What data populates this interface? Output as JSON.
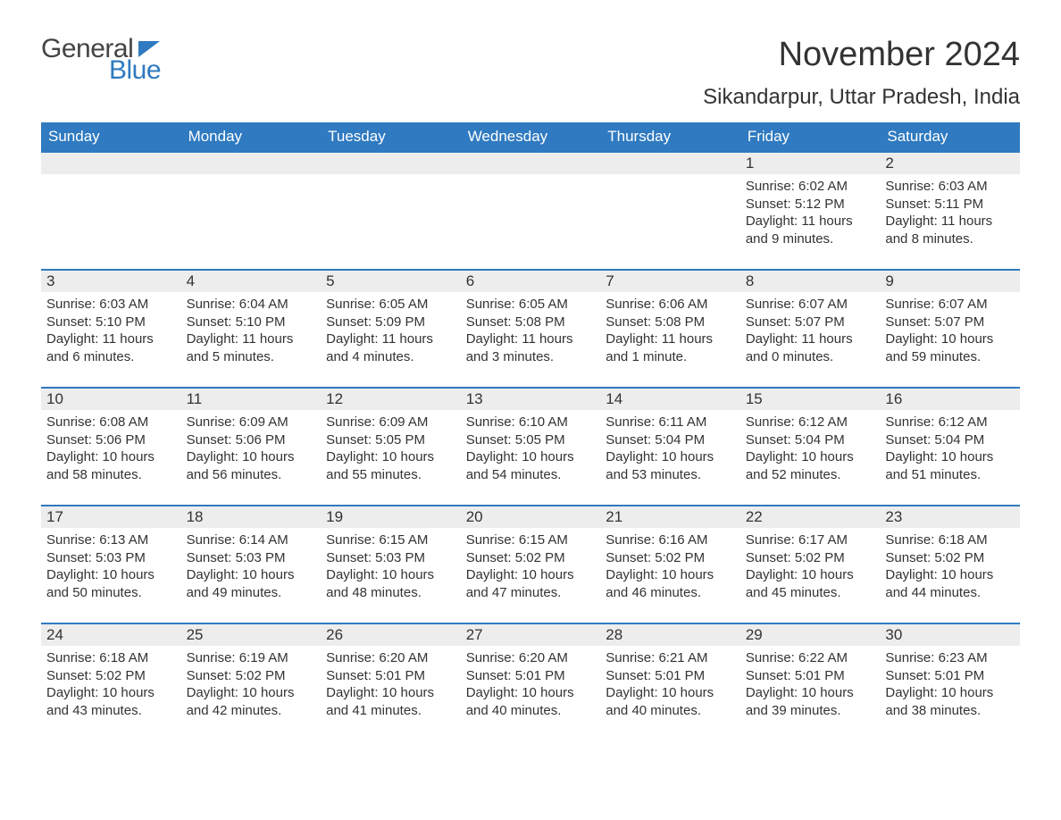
{
  "brand": {
    "word1": "General",
    "word2": "Blue"
  },
  "title": "November 2024",
  "location": "Sikandarpur, Uttar Pradesh, India",
  "colors": {
    "accent": "#2f7ac0",
    "header_text": "#ffffff",
    "daybar_bg": "#ededed",
    "body_text": "#333333",
    "page_bg": "#ffffff"
  },
  "calendar": {
    "type": "table",
    "columns": [
      "Sunday",
      "Monday",
      "Tuesday",
      "Wednesday",
      "Thursday",
      "Friday",
      "Saturday"
    ],
    "weeks": [
      [
        null,
        null,
        null,
        null,
        null,
        {
          "day": "1",
          "sunrise": "Sunrise: 6:02 AM",
          "sunset": "Sunset: 5:12 PM",
          "daylight": "Daylight: 11 hours and 9 minutes."
        },
        {
          "day": "2",
          "sunrise": "Sunrise: 6:03 AM",
          "sunset": "Sunset: 5:11 PM",
          "daylight": "Daylight: 11 hours and 8 minutes."
        }
      ],
      [
        {
          "day": "3",
          "sunrise": "Sunrise: 6:03 AM",
          "sunset": "Sunset: 5:10 PM",
          "daylight": "Daylight: 11 hours and 6 minutes."
        },
        {
          "day": "4",
          "sunrise": "Sunrise: 6:04 AM",
          "sunset": "Sunset: 5:10 PM",
          "daylight": "Daylight: 11 hours and 5 minutes."
        },
        {
          "day": "5",
          "sunrise": "Sunrise: 6:05 AM",
          "sunset": "Sunset: 5:09 PM",
          "daylight": "Daylight: 11 hours and 4 minutes."
        },
        {
          "day": "6",
          "sunrise": "Sunrise: 6:05 AM",
          "sunset": "Sunset: 5:08 PM",
          "daylight": "Daylight: 11 hours and 3 minutes."
        },
        {
          "day": "7",
          "sunrise": "Sunrise: 6:06 AM",
          "sunset": "Sunset: 5:08 PM",
          "daylight": "Daylight: 11 hours and 1 minute."
        },
        {
          "day": "8",
          "sunrise": "Sunrise: 6:07 AM",
          "sunset": "Sunset: 5:07 PM",
          "daylight": "Daylight: 11 hours and 0 minutes."
        },
        {
          "day": "9",
          "sunrise": "Sunrise: 6:07 AM",
          "sunset": "Sunset: 5:07 PM",
          "daylight": "Daylight: 10 hours and 59 minutes."
        }
      ],
      [
        {
          "day": "10",
          "sunrise": "Sunrise: 6:08 AM",
          "sunset": "Sunset: 5:06 PM",
          "daylight": "Daylight: 10 hours and 58 minutes."
        },
        {
          "day": "11",
          "sunrise": "Sunrise: 6:09 AM",
          "sunset": "Sunset: 5:06 PM",
          "daylight": "Daylight: 10 hours and 56 minutes."
        },
        {
          "day": "12",
          "sunrise": "Sunrise: 6:09 AM",
          "sunset": "Sunset: 5:05 PM",
          "daylight": "Daylight: 10 hours and 55 minutes."
        },
        {
          "day": "13",
          "sunrise": "Sunrise: 6:10 AM",
          "sunset": "Sunset: 5:05 PM",
          "daylight": "Daylight: 10 hours and 54 minutes."
        },
        {
          "day": "14",
          "sunrise": "Sunrise: 6:11 AM",
          "sunset": "Sunset: 5:04 PM",
          "daylight": "Daylight: 10 hours and 53 minutes."
        },
        {
          "day": "15",
          "sunrise": "Sunrise: 6:12 AM",
          "sunset": "Sunset: 5:04 PM",
          "daylight": "Daylight: 10 hours and 52 minutes."
        },
        {
          "day": "16",
          "sunrise": "Sunrise: 6:12 AM",
          "sunset": "Sunset: 5:04 PM",
          "daylight": "Daylight: 10 hours and 51 minutes."
        }
      ],
      [
        {
          "day": "17",
          "sunrise": "Sunrise: 6:13 AM",
          "sunset": "Sunset: 5:03 PM",
          "daylight": "Daylight: 10 hours and 50 minutes."
        },
        {
          "day": "18",
          "sunrise": "Sunrise: 6:14 AM",
          "sunset": "Sunset: 5:03 PM",
          "daylight": "Daylight: 10 hours and 49 minutes."
        },
        {
          "day": "19",
          "sunrise": "Sunrise: 6:15 AM",
          "sunset": "Sunset: 5:03 PM",
          "daylight": "Daylight: 10 hours and 48 minutes."
        },
        {
          "day": "20",
          "sunrise": "Sunrise: 6:15 AM",
          "sunset": "Sunset: 5:02 PM",
          "daylight": "Daylight: 10 hours and 47 minutes."
        },
        {
          "day": "21",
          "sunrise": "Sunrise: 6:16 AM",
          "sunset": "Sunset: 5:02 PM",
          "daylight": "Daylight: 10 hours and 46 minutes."
        },
        {
          "day": "22",
          "sunrise": "Sunrise: 6:17 AM",
          "sunset": "Sunset: 5:02 PM",
          "daylight": "Daylight: 10 hours and 45 minutes."
        },
        {
          "day": "23",
          "sunrise": "Sunrise: 6:18 AM",
          "sunset": "Sunset: 5:02 PM",
          "daylight": "Daylight: 10 hours and 44 minutes."
        }
      ],
      [
        {
          "day": "24",
          "sunrise": "Sunrise: 6:18 AM",
          "sunset": "Sunset: 5:02 PM",
          "daylight": "Daylight: 10 hours and 43 minutes."
        },
        {
          "day": "25",
          "sunrise": "Sunrise: 6:19 AM",
          "sunset": "Sunset: 5:02 PM",
          "daylight": "Daylight: 10 hours and 42 minutes."
        },
        {
          "day": "26",
          "sunrise": "Sunrise: 6:20 AM",
          "sunset": "Sunset: 5:01 PM",
          "daylight": "Daylight: 10 hours and 41 minutes."
        },
        {
          "day": "27",
          "sunrise": "Sunrise: 6:20 AM",
          "sunset": "Sunset: 5:01 PM",
          "daylight": "Daylight: 10 hours and 40 minutes."
        },
        {
          "day": "28",
          "sunrise": "Sunrise: 6:21 AM",
          "sunset": "Sunset: 5:01 PM",
          "daylight": "Daylight: 10 hours and 40 minutes."
        },
        {
          "day": "29",
          "sunrise": "Sunrise: 6:22 AM",
          "sunset": "Sunset: 5:01 PM",
          "daylight": "Daylight: 10 hours and 39 minutes."
        },
        {
          "day": "30",
          "sunrise": "Sunrise: 6:23 AM",
          "sunset": "Sunset: 5:01 PM",
          "daylight": "Daylight: 10 hours and 38 minutes."
        }
      ]
    ]
  }
}
